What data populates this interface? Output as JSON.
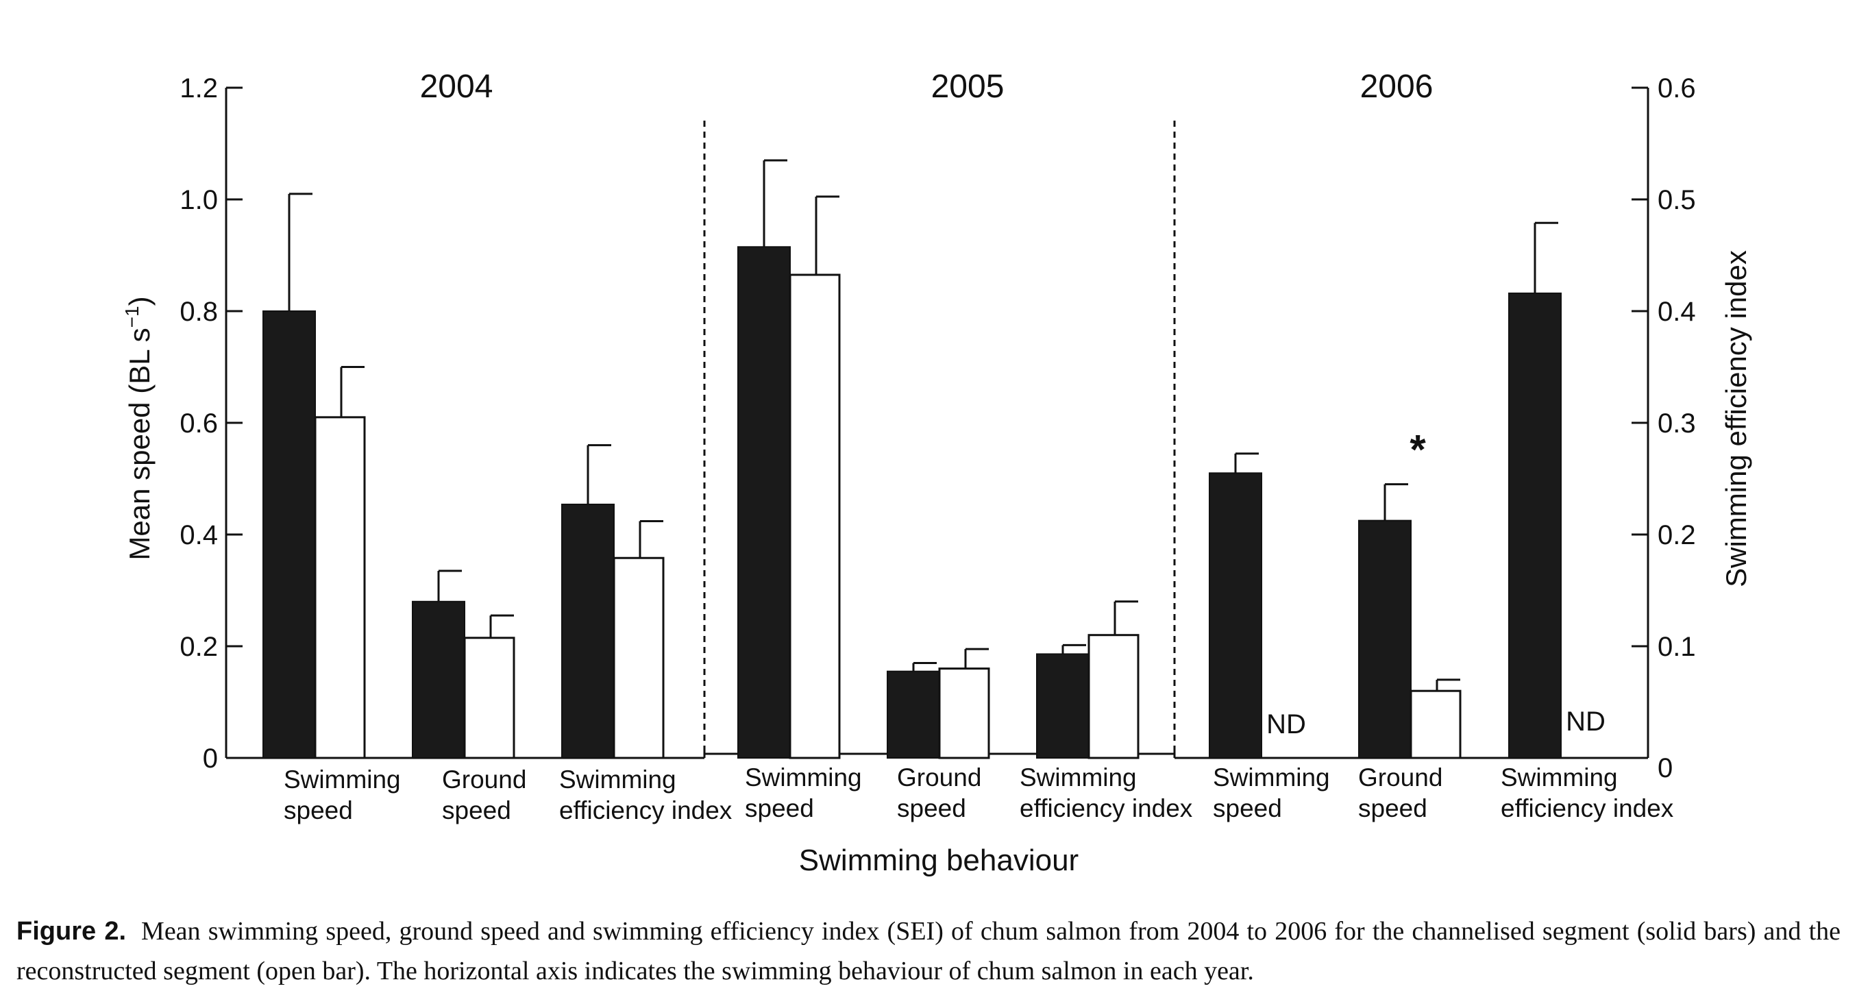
{
  "chart_data": {
    "type": "bar",
    "xlabel": "Swimming behaviour",
    "ylabel_left": "Mean speed (BL s",
    "ylabel_left_sup": "−1",
    "ylabel_left_close": ")",
    "ylabel_right": "Swimming efficiency index",
    "ylim_left": [
      0,
      1.2
    ],
    "ylim_right": [
      0,
      0.6
    ],
    "yticks_left": [
      "0",
      "0.2",
      "0.4",
      "0.6",
      "0.8",
      "1.0",
      "1.2"
    ],
    "yticks_right": [
      "0",
      "0.1",
      "0.2",
      "0.3",
      "0.4",
      "0.5",
      "0.6"
    ],
    "grid": false,
    "series": [
      {
        "key": "channelised",
        "style": "solid",
        "color": "#1a1a1a"
      },
      {
        "key": "reconstructed",
        "style": "open",
        "color": "#ffffff"
      }
    ],
    "groups": [
      {
        "year": "2004",
        "categories": [
          {
            "label": [
              "Swimming",
              "speed"
            ],
            "axis": "left",
            "solid": 0.8,
            "solid_err": 0.21,
            "open": 0.61,
            "open_err": 0.09
          },
          {
            "label": [
              "Ground",
              "speed"
            ],
            "axis": "left",
            "solid": 0.28,
            "solid_err": 0.055,
            "open": 0.215,
            "open_err": 0.04
          },
          {
            "label": [
              "Swimming",
              "efficiency index"
            ],
            "axis": "right",
            "solid": 0.227,
            "solid_err": 0.053,
            "open": 0.179,
            "open_err": 0.033
          }
        ]
      },
      {
        "year": "2005",
        "categories": [
          {
            "label": [
              "Swimming",
              "speed"
            ],
            "axis": "left",
            "solid": 0.915,
            "solid_err": 0.155,
            "open": 0.865,
            "open_err": 0.14
          },
          {
            "label": [
              "Ground",
              "speed"
            ],
            "axis": "left",
            "solid": 0.155,
            "solid_err": 0.015,
            "open": 0.16,
            "open_err": 0.035
          },
          {
            "label": [
              "Swimming",
              "efficiency index"
            ],
            "axis": "right",
            "solid": 0.093,
            "solid_err": 0.008,
            "open": 0.11,
            "open_err": 0.03
          }
        ]
      },
      {
        "year": "2006",
        "categories": [
          {
            "label": [
              "Swimming",
              "speed"
            ],
            "axis": "left",
            "solid": 0.51,
            "solid_err": 0.035,
            "open": null,
            "open_note": "ND"
          },
          {
            "label": [
              "Ground",
              "speed"
            ],
            "axis": "left",
            "solid": 0.425,
            "solid_err": 0.065,
            "open": 0.12,
            "open_err": 0.02,
            "annotation": "*"
          },
          {
            "label": [
              "Swimming",
              "efficiency index"
            ],
            "axis": "right",
            "solid": 0.416,
            "solid_err": 0.063,
            "open": null,
            "open_note": "ND"
          }
        ]
      }
    ]
  },
  "caption": {
    "label": "Figure 2.",
    "text": "Mean swimming speed, ground speed and swimming efficiency index (SEI) of chum salmon from 2004 to 2006 for the channelised segment (solid bars) and the reconstructed segment (open bar). The horizontal axis indicates the swimming behaviour of chum salmon in each year."
  }
}
